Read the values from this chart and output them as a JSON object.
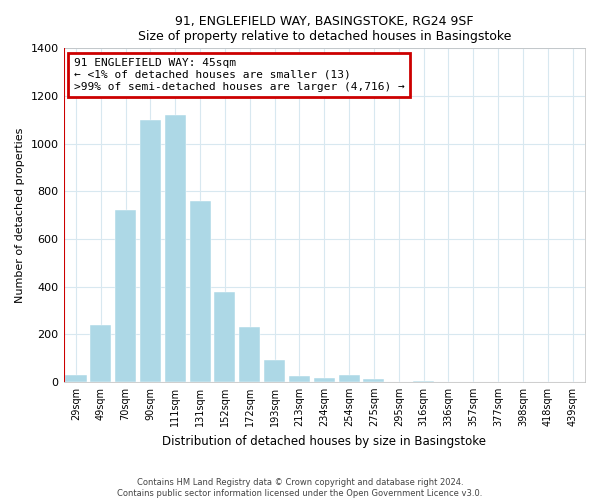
{
  "title": "91, ENGLEFIELD WAY, BASINGSTOKE, RG24 9SF",
  "subtitle": "Size of property relative to detached houses in Basingstoke",
  "xlabel": "Distribution of detached houses by size in Basingstoke",
  "ylabel": "Number of detached properties",
  "categories": [
    "29sqm",
    "49sqm",
    "70sqm",
    "90sqm",
    "111sqm",
    "131sqm",
    "152sqm",
    "172sqm",
    "193sqm",
    "213sqm",
    "234sqm",
    "254sqm",
    "275sqm",
    "295sqm",
    "316sqm",
    "336sqm",
    "357sqm",
    "377sqm",
    "398sqm",
    "418sqm",
    "439sqm"
  ],
  "values": [
    30,
    240,
    720,
    1100,
    1120,
    760,
    375,
    230,
    90,
    25,
    15,
    30,
    10,
    0,
    5,
    0,
    0,
    0,
    0,
    0,
    0
  ],
  "bar_color": "#add8e6",
  "bar_edge_color": "#add8e6",
  "annotation_line1": "91 ENGLEFIELD WAY: 45sqm",
  "annotation_line2": "← <1% of detached houses are smaller (13)",
  "annotation_line3": ">99% of semi-detached houses are larger (4,716) →",
  "annotation_box_edgecolor": "#cc0000",
  "annotation_box_facecolor": "#ffffff",
  "vline_color": "#cc0000",
  "footer_line1": "Contains HM Land Registry data © Crown copyright and database right 2024.",
  "footer_line2": "Contains public sector information licensed under the Open Government Licence v3.0.",
  "ylim": [
    0,
    1400
  ],
  "yticks": [
    0,
    200,
    400,
    600,
    800,
    1000,
    1200,
    1400
  ],
  "background_color": "#ffffff",
  "grid_color": "#d8e8f0"
}
